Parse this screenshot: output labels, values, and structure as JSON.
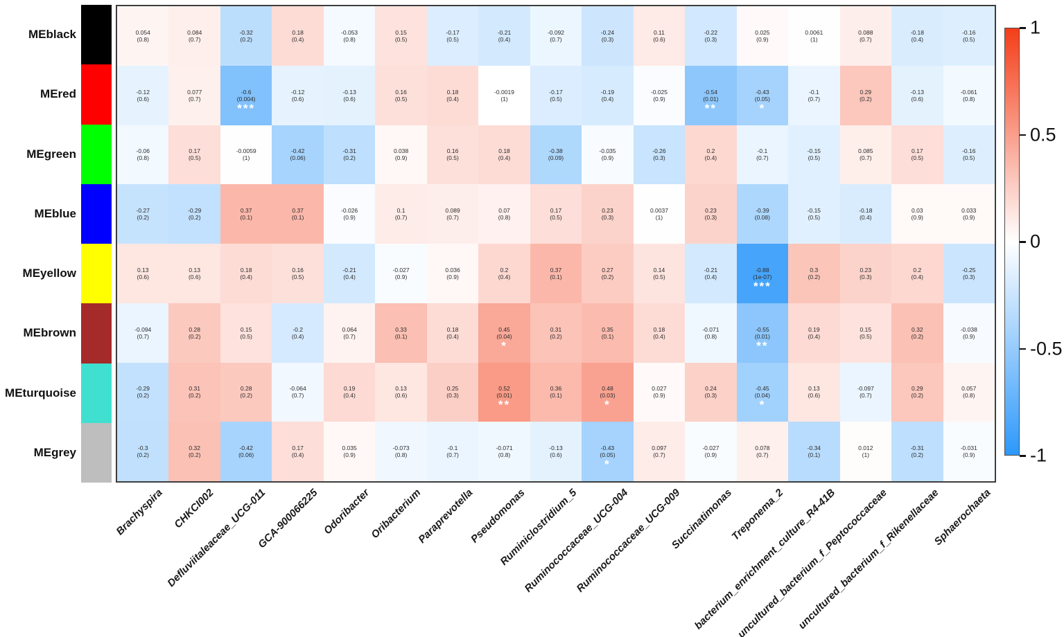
{
  "figure": {
    "description": "WGCNA module to bacterial taxa correlation heatmap",
    "cell_label_format": "correlation over (p-value)",
    "significance_note": "white asterisks mark significant cells"
  },
  "chart_data": {
    "type": "heatmap",
    "rows": [
      "MEblack",
      "MEred",
      "MEgreen",
      "MEblue",
      "MEyellow",
      "MEbrown",
      "MEturquoise",
      "MEgrey"
    ],
    "row_colors": [
      "#000000",
      "#ff0000",
      "#00ff00",
      "#0000ff",
      "#ffff00",
      "#a52a2a",
      "#40e0d0",
      "#bebebe"
    ],
    "columns": [
      "Brachyspira",
      "CHKCI002",
      "Defluviitaleaceae_UCG-011",
      "GCA-900066225",
      "Odoribacter",
      "Oribacterium",
      "Paraprevotella",
      "Pseudomonas",
      "Ruminiclostridium_5",
      "Ruminococcaceae_UCG-004",
      "Ruminococcaceae_UCG-009",
      "Succinatimonas",
      "Treponema_2",
      "bacterium_enrichment_culture_R4-41B",
      "uncultured_bacterium_f_Peptococcaceae",
      "uncultured_bacterium_f_Rikenellaceae",
      "Sphaerochaeta"
    ],
    "values": [
      [
        0.054,
        0.084,
        -0.32,
        0.18,
        -0.053,
        0.15,
        -0.17,
        -0.21,
        -0.092,
        -0.24,
        0.11,
        -0.22,
        0.025,
        0.0061,
        0.088,
        -0.18,
        -0.16
      ],
      [
        -0.12,
        0.077,
        -0.6,
        -0.12,
        -0.13,
        0.16,
        0.18,
        -0.0019,
        -0.17,
        -0.19,
        -0.025,
        -0.54,
        -0.43,
        -0.1,
        0.29,
        -0.13,
        -0.061
      ],
      [
        -0.06,
        0.17,
        -0.0059,
        -0.42,
        -0.31,
        0.038,
        0.16,
        0.18,
        -0.38,
        -0.035,
        -0.26,
        0.2,
        -0.1,
        -0.15,
        0.085,
        0.17,
        -0.16
      ],
      [
        -0.27,
        -0.29,
        0.37,
        0.37,
        -0.026,
        0.1,
        0.089,
        0.07,
        0.17,
        0.23,
        0.0037,
        0.23,
        -0.39,
        -0.15,
        -0.18,
        0.03,
        0.033
      ],
      [
        0.13,
        0.13,
        0.18,
        0.16,
        -0.21,
        -0.027,
        0.036,
        0.2,
        0.37,
        0.27,
        0.14,
        -0.21,
        -0.88,
        0.3,
        0.23,
        0.2,
        -0.25
      ],
      [
        -0.094,
        0.28,
        0.15,
        -0.2,
        0.064,
        0.33,
        0.18,
        0.45,
        0.31,
        0.35,
        0.18,
        -0.071,
        -0.55,
        0.19,
        0.15,
        0.32,
        -0.038
      ],
      [
        -0.29,
        0.31,
        0.28,
        -0.064,
        0.19,
        0.13,
        0.25,
        0.52,
        0.36,
        0.48,
        0.027,
        0.24,
        -0.45,
        0.13,
        -0.097,
        0.29,
        0.057
      ],
      [
        -0.3,
        0.32,
        -0.42,
        0.17,
        0.035,
        -0.073,
        -0.1,
        -0.071,
        -0.13,
        -0.43,
        0.097,
        -0.027,
        0.078,
        -0.34,
        0.012,
        -0.31,
        -0.031
      ]
    ],
    "pvalues": [
      [
        "0.8",
        "0.7",
        "0.2",
        "0.4",
        "0.8",
        "0.5",
        "0.5",
        "0.4",
        "0.7",
        "0.3",
        "0.6",
        "0.3",
        "0.9",
        "1",
        "0.7",
        "0.4",
        "0.5"
      ],
      [
        "0.6",
        "0.7",
        "0.004",
        "0.6",
        "0.6",
        "0.5",
        "0.4",
        "1",
        "0.5",
        "0.4",
        "0.9",
        "0.01",
        "0.05",
        "0.7",
        "0.2",
        "0.6",
        "0.8"
      ],
      [
        "0.8",
        "0.5",
        "1",
        "0.06",
        "0.2",
        "0.9",
        "0.5",
        "0.4",
        "0.09",
        "0.9",
        "0.3",
        "0.4",
        "0.7",
        "0.5",
        "0.7",
        "0.5",
        "0.5"
      ],
      [
        "0.2",
        "0.2",
        "0.1",
        "0.1",
        "0.9",
        "0.7",
        "0.7",
        "0.8",
        "0.5",
        "0.3",
        "1",
        "0.3",
        "0.08",
        "0.5",
        "0.4",
        "0.9",
        "0.9"
      ],
      [
        "0.6",
        "0.6",
        "0.4",
        "0.5",
        "0.4",
        "0.9",
        "0.9",
        "0.4",
        "0.1",
        "0.2",
        "0.5",
        "0.4",
        "1e-07",
        "0.2",
        "0.3",
        "0.4",
        "0.3"
      ],
      [
        "0.7",
        "0.2",
        "0.5",
        "0.4",
        "0.7",
        "0.1",
        "0.4",
        "0.04",
        "0.2",
        "0.1",
        "0.4",
        "0.8",
        "0.01",
        "0.4",
        "0.5",
        "0.2",
        "0.9"
      ],
      [
        "0.2",
        "0.2",
        "0.2",
        "0.7",
        "0.4",
        "0.6",
        "0.3",
        "0.01",
        "0.1",
        "0.03",
        "0.9",
        "0.3",
        "0.04",
        "0.6",
        "0.7",
        "0.2",
        "0.8"
      ],
      [
        "0.2",
        "0.2",
        "0.06",
        "0.4",
        "0.9",
        "0.8",
        "0.7",
        "0.8",
        "0.6",
        "0.05",
        "0.7",
        "0.9",
        "0.7",
        "0.1",
        "1",
        "0.2",
        "0.9"
      ]
    ],
    "significance": [
      [
        "",
        "",
        "",
        "",
        "",
        "",
        "",
        "",
        "",
        "",
        "",
        "",
        "",
        "",
        "",
        "",
        ""
      ],
      [
        "",
        "",
        "***",
        "",
        "",
        "",
        "",
        "",
        "",
        "",
        "",
        "**",
        "*",
        "",
        "",
        "",
        ""
      ],
      [
        "",
        "",
        "",
        "",
        "",
        "",
        "",
        "",
        "",
        "",
        "",
        "",
        "",
        "",
        "",
        "",
        ""
      ],
      [
        "",
        "",
        "",
        "",
        "",
        "",
        "",
        "",
        "",
        "",
        "",
        "",
        "",
        "",
        "",
        "",
        ""
      ],
      [
        "",
        "",
        "",
        "",
        "",
        "",
        "",
        "",
        "",
        "",
        "",
        "",
        "***",
        "",
        "",
        "",
        ""
      ],
      [
        "",
        "",
        "",
        "",
        "",
        "",
        "",
        "*",
        "",
        "",
        "",
        "",
        "**",
        "",
        "",
        "",
        ""
      ],
      [
        "",
        "",
        "",
        "",
        "",
        "",
        "",
        "**",
        "",
        "*",
        "",
        "",
        "*",
        "",
        "",
        "",
        ""
      ],
      [
        "",
        "",
        "",
        "",
        "",
        "",
        "",
        "",
        "",
        "*",
        "",
        "",
        "",
        "",
        "",
        "",
        ""
      ]
    ],
    "colorscale": {
      "min": -1,
      "max": 1,
      "min_color": "#2d98fa",
      "mid_color": "#ffffff",
      "max_color": "#f43e19"
    },
    "colorbar_ticks": [
      "1",
      "0.5",
      "0",
      "-0.5",
      "-1"
    ],
    "colorbar_tick_values": [
      1,
      0.5,
      0,
      -0.5,
      -1
    ],
    "legend_position": "right",
    "xlabel": "",
    "ylabel": "",
    "title": ""
  }
}
